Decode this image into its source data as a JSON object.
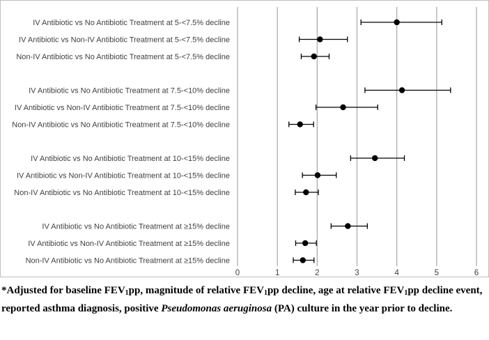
{
  "chart_data": {
    "type": "scatter",
    "subtype": "forest-plot",
    "title": "",
    "xlabel": "",
    "ylabel": "",
    "xlim": [
      0,
      6
    ],
    "xticks": [
      0,
      1,
      2,
      3,
      4,
      5,
      6
    ],
    "grid": "vertical",
    "legend": "none",
    "marker_color": "#000000",
    "grid_color": "#a6a6a6",
    "groups": [
      {
        "rows": [
          {
            "label": "IV Antibiotic vs No Antibiotic Treatment at 5-<7.5% decline",
            "estimate": 4.0,
            "lower": 3.1,
            "upper": 5.13
          },
          {
            "label": "IV Antibiotic vs Non-IV Antibiotic Treatment at 5-<7.5% decline",
            "estimate": 2.07,
            "lower": 1.55,
            "upper": 2.76
          },
          {
            "label": "Non-IV Antibiotic vs No Antibiotic Treatment at 5-<7.5% decline",
            "estimate": 1.92,
            "lower": 1.6,
            "upper": 2.3
          }
        ]
      },
      {
        "rows": [
          {
            "label": "IV Antibiotic vs No Antibiotic Treatment at 7.5-<10% decline",
            "estimate": 4.13,
            "lower": 3.2,
            "upper": 5.35
          },
          {
            "label": "IV Antibiotic vs Non-IV Antibiotic Treatment at 7.5-<10% decline",
            "estimate": 2.65,
            "lower": 1.97,
            "upper": 3.52
          },
          {
            "label": "Non-IV Antibiotic vs No Antibiotic Treatment at 7.5-<10% decline",
            "estimate": 1.57,
            "lower": 1.29,
            "upper": 1.91
          }
        ]
      },
      {
        "rows": [
          {
            "label": "IV Antibiotic vs No Antibiotic Treatment at 10-<15% decline",
            "estimate": 3.45,
            "lower": 2.84,
            "upper": 4.19
          },
          {
            "label": "IV Antibiotic vs Non-IV Antibiotic Treatment at 10-<15% decline",
            "estimate": 2.01,
            "lower": 1.63,
            "upper": 2.48
          },
          {
            "label": "Non-IV Antibiotic vs No Antibiotic Treatment at 10-<15% decline",
            "estimate": 1.72,
            "lower": 1.45,
            "upper": 2.03
          }
        ]
      },
      {
        "rows": [
          {
            "label": "IV Antibiotic vs No Antibiotic Treatment at ≥15% decline",
            "estimate": 2.77,
            "lower": 2.35,
            "upper": 3.26
          },
          {
            "label": "IV Antibiotic vs Non-IV Antibiotic Treatment at ≥15% decline",
            "estimate": 1.7,
            "lower": 1.46,
            "upper": 1.98
          },
          {
            "label": "Non-IV Antibiotic vs No Antibiotic Treatment at ≥15% decline",
            "estimate": 1.64,
            "lower": 1.4,
            "upper": 1.92
          }
        ]
      }
    ]
  },
  "footnote": {
    "part1": "*Adjusted for baseline FEV",
    "sub1": "1",
    "part2": "pp, magnitude of relative FEV",
    "sub2": "1",
    "part3": "pp decline, age at relative FEV",
    "sub3": "1",
    "part4": "pp decline event, reported asthma diagnosis, positive ",
    "italic": "Pseudomonas aeruginosa",
    "part5": " (PA) culture in the year prior to decline."
  }
}
